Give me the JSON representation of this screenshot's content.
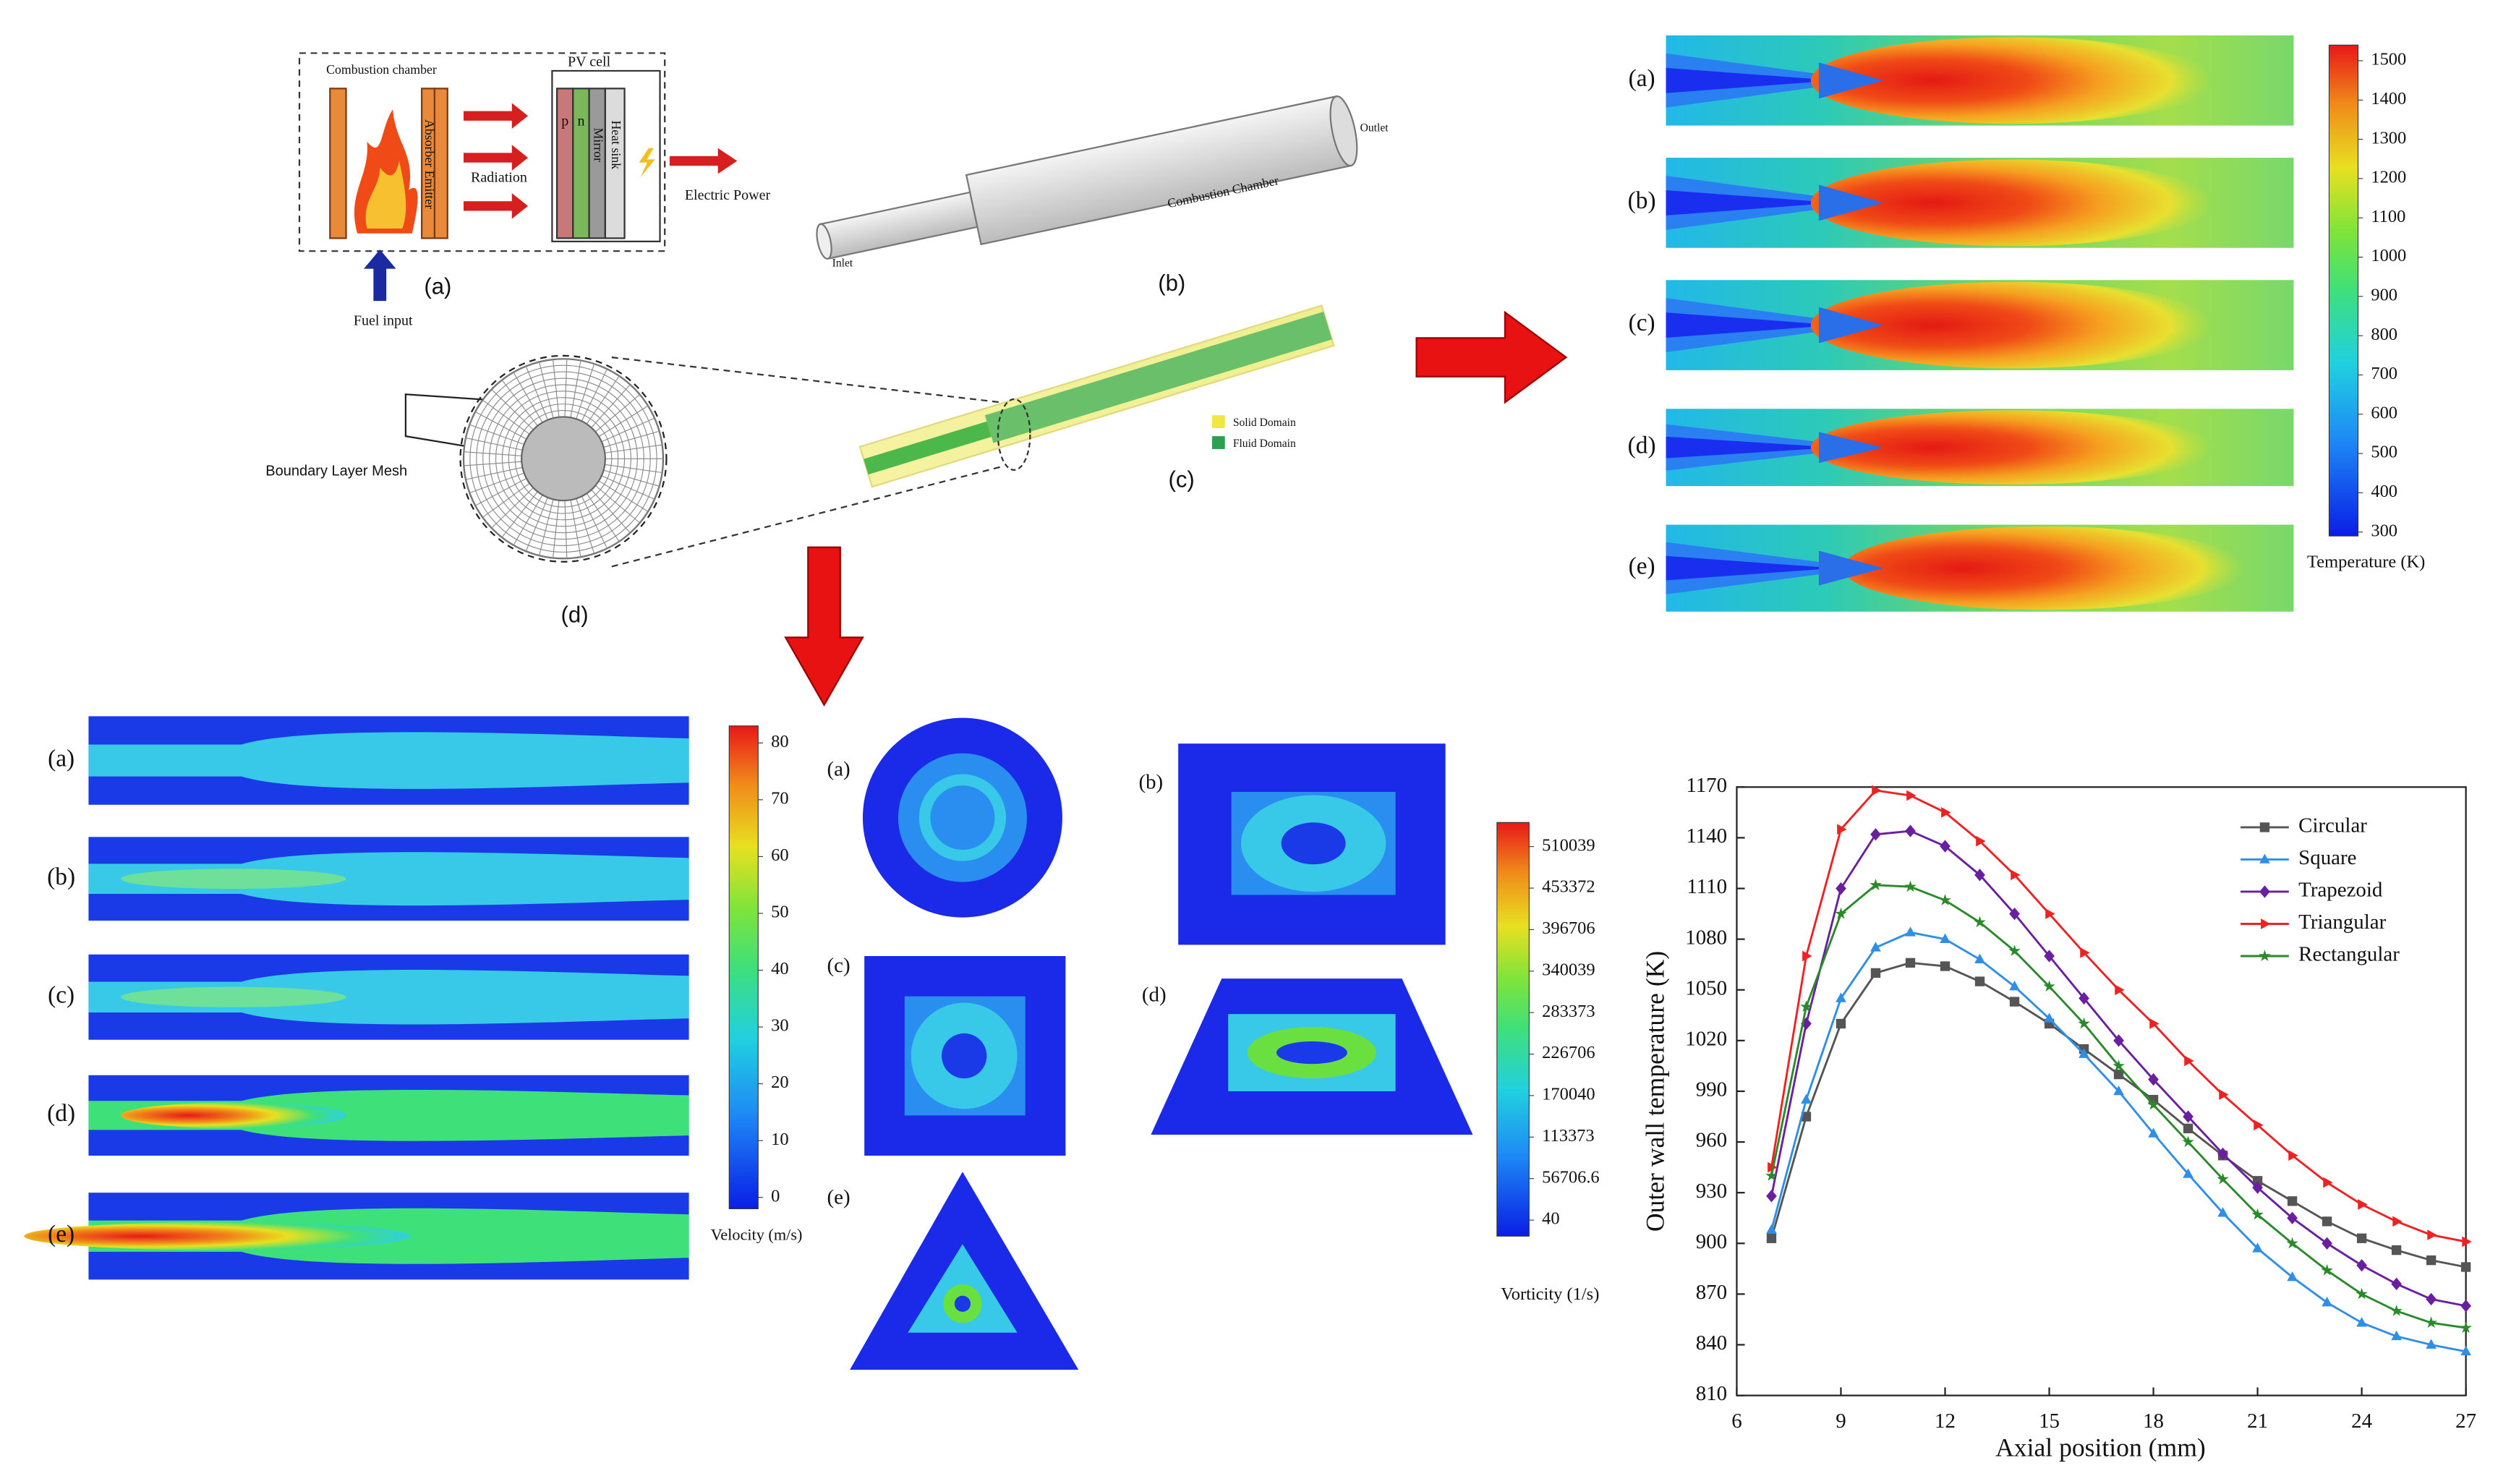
{
  "system_diagram": {
    "combustion_chamber": "Combustion chamber",
    "pv_cell": "PV cell",
    "absorber_emitter": "Absorber Emitter",
    "p": "p",
    "n": "n",
    "mirror": "Mirror",
    "heat_sink": "Heat sink",
    "radiation": "Radiation",
    "electric_power": "Electric Power",
    "fuel_input": "Fuel input",
    "label": "(a)"
  },
  "geometry": {
    "inlet": "Inlet",
    "outlet": "Outlet",
    "combustion_chamber": "Combustion Chamber",
    "label": "(b)"
  },
  "domain": {
    "solid": "Solid Domain",
    "fluid": "Fluid Domain",
    "label": "(c)"
  },
  "mesh": {
    "boundary_layer": "Boundary Layer Mesh",
    "label": "(d)"
  },
  "temperature_contours": {
    "labels": [
      "(a)",
      "(b)",
      "(c)",
      "(d)",
      "(e)"
    ],
    "colorbar": {
      "title": "Temperature (K)",
      "lim": [
        290,
        1540
      ],
      "ticks": [
        300,
        400,
        500,
        600,
        700,
        800,
        900,
        1000,
        1100,
        1200,
        1300,
        1400,
        1500
      ]
    }
  },
  "velocity_contours": {
    "labels": [
      "(a)",
      "(b)",
      "(c)",
      "(d)",
      "(e)"
    ],
    "colorbar": {
      "title": "Velocity (m/s)",
      "lim": [
        -2,
        83
      ],
      "ticks": [
        0,
        10,
        20,
        30,
        40,
        50,
        60,
        70,
        80
      ]
    }
  },
  "vorticity_contours": {
    "labels": [
      "(a)",
      "(b)",
      "(c)",
      "(d)",
      "(e)"
    ],
    "colorbar": {
      "title": "Vorticity (1/s)",
      "lim": [
        -21900,
        543000
      ],
      "ticks": [
        40,
        56706.6,
        113373,
        170040,
        226706,
        283373,
        340039,
        396706,
        453372,
        510039
      ]
    }
  },
  "chart_data": {
    "type": "line",
    "x_label": "Axial position (mm)",
    "y_label": "Outer wall temperature (K)",
    "x": [
      7,
      8,
      9,
      10,
      11,
      12,
      13,
      14,
      15,
      16,
      17,
      18,
      19,
      20,
      21,
      22,
      23,
      24,
      25,
      26,
      27
    ],
    "xlim": [
      6,
      27
    ],
    "xticks": [
      6,
      9,
      12,
      15,
      18,
      21,
      24,
      27
    ],
    "ylim": [
      810,
      1170
    ],
    "yticks": [
      810,
      840,
      870,
      900,
      930,
      960,
      990,
      1020,
      1050,
      1080,
      1110,
      1140,
      1170
    ],
    "legend": "upper right",
    "series": [
      {
        "name": "Circular",
        "color": "#555555",
        "marker": "square",
        "values": [
          903,
          975,
          1030,
          1060,
          1066,
          1064,
          1055,
          1043,
          1030,
          1015,
          1000,
          985,
          968,
          952,
          937,
          925,
          913,
          903,
          896,
          890,
          886
        ]
      },
      {
        "name": "Square",
        "color": "#2f8fe6",
        "marker": "triangle-up",
        "values": [
          908,
          985,
          1045,
          1075,
          1084,
          1080,
          1068,
          1052,
          1033,
          1012,
          990,
          965,
          941,
          918,
          897,
          880,
          865,
          853,
          845,
          840,
          836
        ]
      },
      {
        "name": "Trapezoid",
        "color": "#6a1fa0",
        "marker": "diamond",
        "values": [
          928,
          1030,
          1110,
          1142,
          1144,
          1135,
          1118,
          1095,
          1070,
          1045,
          1020,
          997,
          975,
          953,
          933,
          915,
          900,
          887,
          876,
          867,
          863
        ]
      },
      {
        "name": "Triangular",
        "color": "#ee2222",
        "marker": "triangle-right",
        "values": [
          945,
          1070,
          1145,
          1168,
          1165,
          1155,
          1138,
          1118,
          1095,
          1072,
          1050,
          1030,
          1008,
          988,
          970,
          952,
          936,
          923,
          913,
          905,
          901
        ]
      },
      {
        "name": "Rectangular",
        "color": "#2a8a2a",
        "marker": "star",
        "values": [
          940,
          1040,
          1095,
          1112,
          1111,
          1103,
          1090,
          1073,
          1052,
          1030,
          1005,
          982,
          960,
          938,
          917,
          900,
          884,
          870,
          860,
          853,
          850
        ]
      }
    ]
  }
}
